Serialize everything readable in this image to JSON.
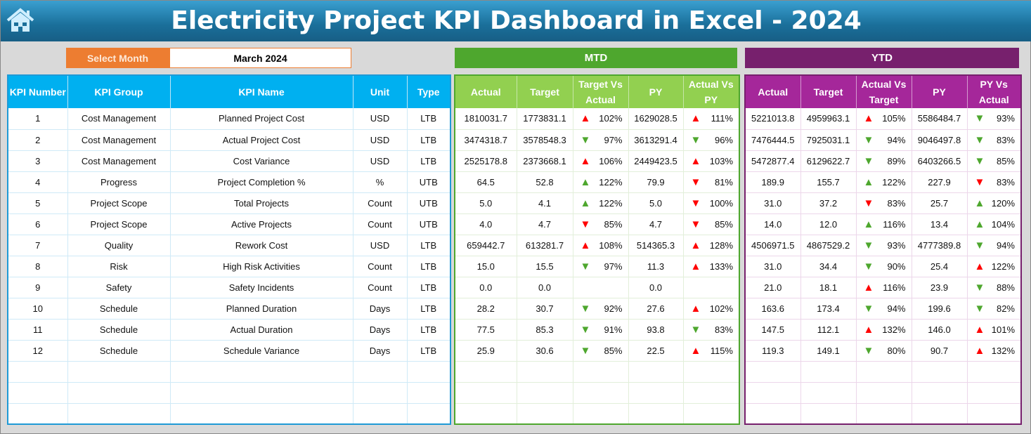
{
  "header": {
    "title": "Electricity Project KPI Dashboard in Excel - 2024",
    "home_icon": "home-icon"
  },
  "month_selector": {
    "label": "Select Month",
    "value": "March 2024"
  },
  "sections": {
    "mtd": "MTD",
    "ytd": "YTD"
  },
  "colors": {
    "up_bad": "#ff0000",
    "up_good": "#4ea72e",
    "down_good": "#4ea72e",
    "down_bad": "#ff0000",
    "mtd": "#4ea72e",
    "ytd": "#77206d",
    "kpi": "#00b0f0",
    "select": "#ed7d31"
  },
  "kpi_columns": [
    "KPI Number",
    "KPI Group",
    "KPI Name",
    "Unit",
    "Type"
  ],
  "mtd_columns": [
    "Actual",
    "Target",
    "Target Vs Actual",
    "PY",
    "Actual Vs PY"
  ],
  "ytd_columns": [
    "Actual",
    "Target",
    "Actual Vs Target",
    "PY",
    "PY Vs Actual"
  ],
  "kpis": [
    [
      "1",
      "Cost Management",
      "Planned Project Cost",
      "USD",
      "LTB"
    ],
    [
      "2",
      "Cost Management",
      "Actual Project Cost",
      "USD",
      "LTB"
    ],
    [
      "3",
      "Cost Management",
      "Cost Variance",
      "USD",
      "LTB"
    ],
    [
      "4",
      "Progress",
      "Project Completion %",
      "%",
      "UTB"
    ],
    [
      "5",
      "Project Scope",
      "Total Projects",
      "Count",
      "UTB"
    ],
    [
      "6",
      "Project Scope",
      "Active Projects",
      "Count",
      "UTB"
    ],
    [
      "7",
      "Quality",
      "Rework Cost",
      "USD",
      "LTB"
    ],
    [
      "8",
      "Risk",
      "High Risk Activities",
      "Count",
      "LTB"
    ],
    [
      "9",
      "Safety",
      "Safety Incidents",
      "Count",
      "LTB"
    ],
    [
      "10",
      "Schedule",
      "Planned Duration",
      "Days",
      "LTB"
    ],
    [
      "11",
      "Schedule",
      "Actual Duration",
      "Days",
      "LTB"
    ],
    [
      "12",
      "Schedule",
      "Schedule Variance",
      "Days",
      "LTB"
    ]
  ],
  "mtd": [
    [
      "1810031.7",
      "1773831.1",
      [
        "up-red",
        "102%"
      ],
      "1629028.5",
      [
        "up-red",
        "111%"
      ]
    ],
    [
      "3474318.7",
      "3578548.3",
      [
        "down-green",
        "97%"
      ],
      "3613291.4",
      [
        "down-green",
        "96%"
      ]
    ],
    [
      "2525178.8",
      "2373668.1",
      [
        "up-red",
        "106%"
      ],
      "2449423.5",
      [
        "up-red",
        "103%"
      ]
    ],
    [
      "64.5",
      "52.8",
      [
        "up-green",
        "122%"
      ],
      "79.9",
      [
        "down-red",
        "81%"
      ]
    ],
    [
      "5.0",
      "4.1",
      [
        "up-green",
        "122%"
      ],
      "5.0",
      [
        "down-red",
        "100%"
      ]
    ],
    [
      "4.0",
      "4.7",
      [
        "down-red",
        "85%"
      ],
      "4.7",
      [
        "down-red",
        "85%"
      ]
    ],
    [
      "659442.7",
      "613281.7",
      [
        "up-red",
        "108%"
      ],
      "514365.3",
      [
        "up-red",
        "128%"
      ]
    ],
    [
      "15.0",
      "15.5",
      [
        "down-green",
        "97%"
      ],
      "11.3",
      [
        "up-red",
        "133%"
      ]
    ],
    [
      "0.0",
      "0.0",
      [
        "",
        ""
      ],
      "0.0",
      [
        "",
        ""
      ]
    ],
    [
      "28.2",
      "30.7",
      [
        "down-green",
        "92%"
      ],
      "27.6",
      [
        "up-red",
        "102%"
      ]
    ],
    [
      "77.5",
      "85.3",
      [
        "down-green",
        "91%"
      ],
      "93.8",
      [
        "down-green",
        "83%"
      ]
    ],
    [
      "25.9",
      "30.6",
      [
        "down-green",
        "85%"
      ],
      "22.5",
      [
        "up-red",
        "115%"
      ]
    ]
  ],
  "ytd": [
    [
      "5221013.8",
      "4959963.1",
      [
        "up-red",
        "105%"
      ],
      "5586484.7",
      [
        "down-green",
        "93%"
      ]
    ],
    [
      "7476444.5",
      "7925031.1",
      [
        "down-green",
        "94%"
      ],
      "9046497.8",
      [
        "down-green",
        "83%"
      ]
    ],
    [
      "5472877.4",
      "6129622.7",
      [
        "down-green",
        "89%"
      ],
      "6403266.5",
      [
        "down-green",
        "85%"
      ]
    ],
    [
      "189.9",
      "155.7",
      [
        "up-green",
        "122%"
      ],
      "227.9",
      [
        "down-red",
        "83%"
      ]
    ],
    [
      "31.0",
      "37.2",
      [
        "down-red",
        "83%"
      ],
      "25.7",
      [
        "up-green",
        "120%"
      ]
    ],
    [
      "14.0",
      "12.0",
      [
        "up-green",
        "116%"
      ],
      "13.4",
      [
        "up-green",
        "104%"
      ]
    ],
    [
      "4506971.5",
      "4867529.2",
      [
        "down-green",
        "93%"
      ],
      "4777389.8",
      [
        "down-green",
        "94%"
      ]
    ],
    [
      "31.0",
      "34.4",
      [
        "down-green",
        "90%"
      ],
      "25.4",
      [
        "up-red",
        "122%"
      ]
    ],
    [
      "21.0",
      "18.1",
      [
        "up-red",
        "116%"
      ],
      "23.9",
      [
        "down-green",
        "88%"
      ]
    ],
    [
      "163.6",
      "173.4",
      [
        "down-green",
        "94%"
      ],
      "199.6",
      [
        "down-green",
        "82%"
      ]
    ],
    [
      "147.5",
      "112.1",
      [
        "up-red",
        "132%"
      ],
      "146.0",
      [
        "up-red",
        "101%"
      ]
    ],
    [
      "119.3",
      "149.1",
      [
        "down-green",
        "80%"
      ],
      "90.7",
      [
        "up-red",
        "132%"
      ]
    ]
  ]
}
